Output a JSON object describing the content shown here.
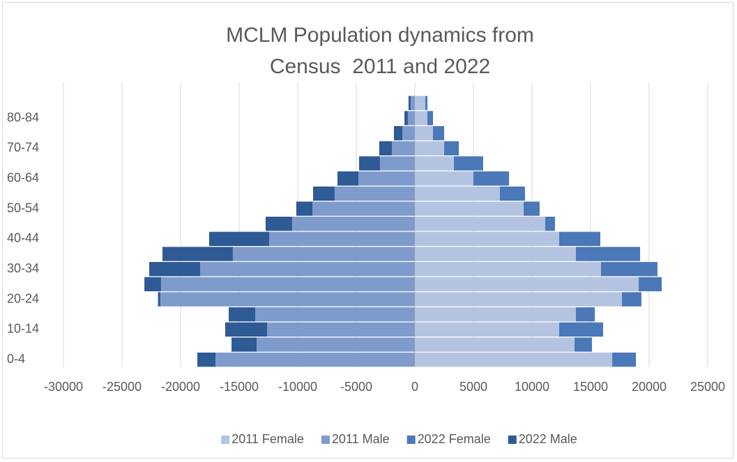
{
  "chart_data": {
    "type": "bar",
    "orientation": "horizontal",
    "stacked": true,
    "title": "MCLM Population dynamics from Census  2011 and 2022",
    "categories": [
      "0-4",
      null,
      "10-14",
      null,
      "20-24",
      null,
      "30-34",
      null,
      "40-44",
      null,
      "50-54",
      null,
      "60-64",
      null,
      "70-74",
      null,
      "80-84",
      null
    ],
    "series": [
      {
        "name": "2011 Female",
        "color": "#b4c3e0",
        "values": [
          16850,
          13630,
          12320,
          13750,
          17680,
          19110,
          15890,
          13750,
          12320,
          11130,
          9290,
          7260,
          5000,
          3330,
          2500,
          1550,
          1070,
          890
        ]
      },
      {
        "name": "2011 Male",
        "color": "#7f9bcc",
        "values": [
          -17020,
          -13510,
          -12620,
          -13630,
          -21730,
          -21670,
          -18330,
          -15540,
          -12440,
          -10480,
          -8750,
          -6850,
          -4820,
          -2980,
          -1960,
          -1070,
          -600,
          -360
        ]
      },
      {
        "name": "2022 Female",
        "color": "#4a78b8",
        "values": [
          2020,
          1490,
          3750,
          1610,
          1660,
          1960,
          4820,
          5480,
          3510,
          830,
          1360,
          2140,
          3040,
          2500,
          1250,
          950,
          480,
          180
        ]
      },
      {
        "name": "2022 Male",
        "color": "#2e5a95",
        "values": [
          -1550,
          -2140,
          -3570,
          -2260,
          -200,
          -1420,
          -4350,
          -6010,
          -5120,
          -2260,
          -1370,
          -1840,
          -1790,
          -1780,
          -1080,
          -720,
          -290,
          -180
        ]
      }
    ],
    "xlim": [
      -30000,
      25000
    ],
    "xticks": [
      -30000,
      -25000,
      -20000,
      -15000,
      -10000,
      -5000,
      0,
      5000,
      10000,
      15000,
      20000,
      25000
    ],
    "grid": true,
    "legend": "bottom"
  }
}
